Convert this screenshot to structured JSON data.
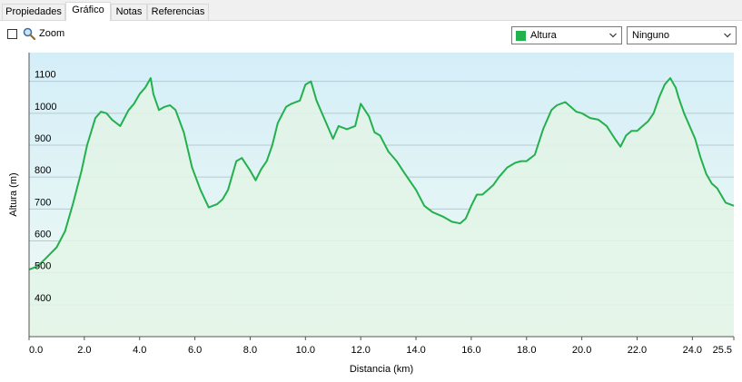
{
  "tabs": [
    {
      "label": "Propiedades",
      "active": false
    },
    {
      "label": "Gráfico",
      "active": true
    },
    {
      "label": "Notas",
      "active": false
    },
    {
      "label": "Referencias",
      "active": false
    }
  ],
  "toolbar": {
    "zoom_label": "Zoom",
    "zoom_checked": false,
    "series_select": {
      "value": "Altura",
      "color": "#22b14c"
    },
    "second_select": {
      "value": "Ninguno"
    }
  },
  "chart_data": {
    "type": "area",
    "xlabel": "Distancia  (km)",
    "ylabel": "Altura (m)",
    "xlim": [
      0,
      25.5
    ],
    "ylim": [
      300,
      1190
    ],
    "x_ticks": [
      "0.0",
      "2.0",
      "4.0",
      "6.0",
      "8.0",
      "10.0",
      "12.0",
      "14.0",
      "16.0",
      "18.0",
      "20.0",
      "22.0",
      "24.0",
      "25.5"
    ],
    "y_ticks": [
      "400",
      "500",
      "600",
      "700",
      "800",
      "900",
      "1000",
      "1100"
    ],
    "grid": true,
    "line_color": "#22b14c",
    "series": [
      {
        "x": [
          0.0,
          0.3,
          0.6,
          1.0,
          1.3,
          1.6,
          1.9,
          2.1,
          2.4,
          2.6,
          2.8,
          3.0,
          3.3,
          3.6,
          3.8,
          4.0,
          4.2,
          4.4,
          4.5,
          4.7,
          4.9,
          5.1,
          5.3,
          5.6,
          5.9,
          6.2,
          6.5,
          6.8,
          7.0,
          7.2,
          7.5,
          7.7,
          8.0,
          8.2,
          8.4,
          8.6,
          8.8,
          9.0,
          9.3,
          9.5,
          9.8,
          10.0,
          10.2,
          10.4,
          10.7,
          11.0,
          11.2,
          11.5,
          11.8,
          12.0,
          12.3,
          12.5,
          12.7,
          13.0,
          13.3,
          13.6,
          14.0,
          14.3,
          14.6,
          15.0,
          15.3,
          15.6,
          15.8,
          16.0,
          16.2,
          16.4,
          16.6,
          16.8,
          17.0,
          17.3,
          17.6,
          17.8,
          18.0,
          18.3,
          18.6,
          18.9,
          19.1,
          19.4,
          19.6,
          19.8,
          20.0,
          20.3,
          20.6,
          20.9,
          21.2,
          21.4,
          21.6,
          21.8,
          22.0,
          22.2,
          22.4,
          22.6,
          22.8,
          23.0,
          23.2,
          23.4,
          23.5,
          23.7,
          23.9,
          24.1,
          24.3,
          24.5,
          24.7,
          24.9,
          25.2,
          25.5
        ],
        "values": [
          510,
          520,
          545,
          580,
          630,
          720,
          820,
          900,
          985,
          1005,
          1000,
          980,
          960,
          1010,
          1030,
          1060,
          1080,
          1110,
          1060,
          1010,
          1020,
          1025,
          1010,
          940,
          830,
          760,
          705,
          715,
          730,
          760,
          850,
          860,
          820,
          790,
          825,
          850,
          900,
          970,
          1020,
          1030,
          1040,
          1090,
          1100,
          1040,
          980,
          920,
          960,
          950,
          960,
          1030,
          990,
          940,
          930,
          880,
          850,
          810,
          760,
          710,
          690,
          675,
          660,
          655,
          670,
          710,
          745,
          745,
          760,
          775,
          800,
          830,
          845,
          850,
          850,
          870,
          950,
          1010,
          1025,
          1035,
          1020,
          1005,
          1000,
          985,
          980,
          960,
          920,
          895,
          930,
          945,
          945,
          960,
          975,
          1000,
          1050,
          1090,
          1110,
          1080,
          1050,
          1000,
          960,
          920,
          860,
          810,
          780,
          765,
          720,
          710
        ]
      }
    ]
  }
}
